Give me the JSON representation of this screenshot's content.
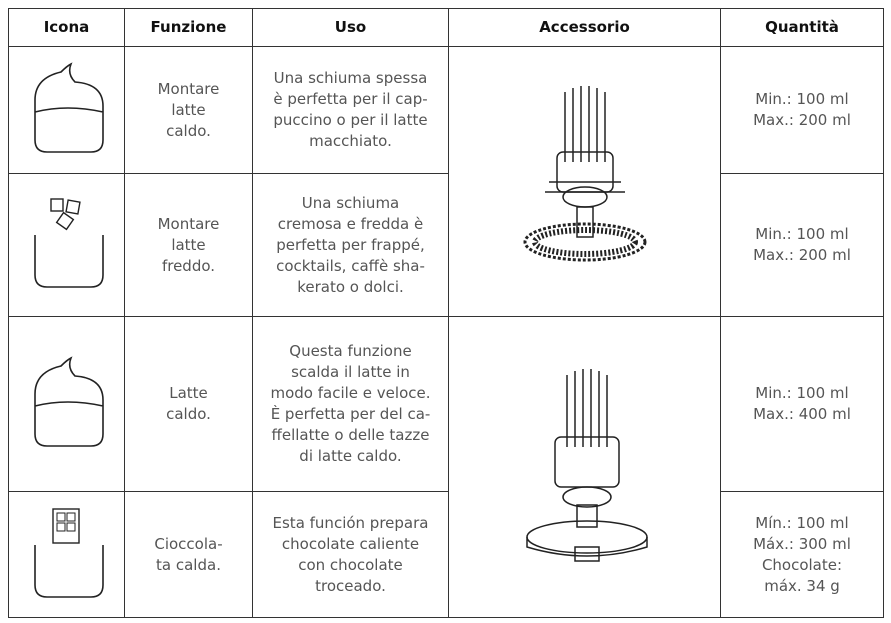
{
  "table": {
    "header": [
      "Icona",
      "Funzione",
      "Uso",
      "Accessorio",
      "Quantità"
    ],
    "rows": [
      {
        "funzione": [
          "Montare",
          "latte",
          "caldo."
        ],
        "uso": [
          "Una schiuma spessa",
          "è perfetta per il cap-",
          "puccino o per il latte",
          "macchiato."
        ],
        "quantita": [
          "Min.: 100 ml",
          "Max.: 200 ml"
        ]
      },
      {
        "funzione": [
          "Montare",
          "latte",
          "freddo."
        ],
        "uso": [
          "Una schiuma",
          "cremosa e fredda è",
          "perfetta per frappé,",
          "cocktails, caffè sha-",
          "kerato o dolci."
        ],
        "quantita": [
          "Min.: 100 ml",
          "Max.: 200 ml"
        ]
      },
      {
        "funzione": [
          "Latte",
          "caldo."
        ],
        "uso": [
          "Questa funzione",
          "scalda il latte in",
          "modo facile e veloce.",
          "È perfetta per del ca-",
          "ffellatte o delle tazze",
          "di latte caldo."
        ],
        "quantita": [
          "Min.: 100 ml",
          "Max.: 400 ml"
        ]
      },
      {
        "funzione": [
          "Cioccola-",
          "ta calda."
        ],
        "uso": [
          "Esta función prepara",
          "chocolate caliente",
          "con chocolate",
          "troceado."
        ],
        "quantita": [
          "Mín.: 100 ml",
          "Máx.: 300 ml",
          "Chocolate:",
          "máx. 34 g"
        ]
      }
    ]
  }
}
